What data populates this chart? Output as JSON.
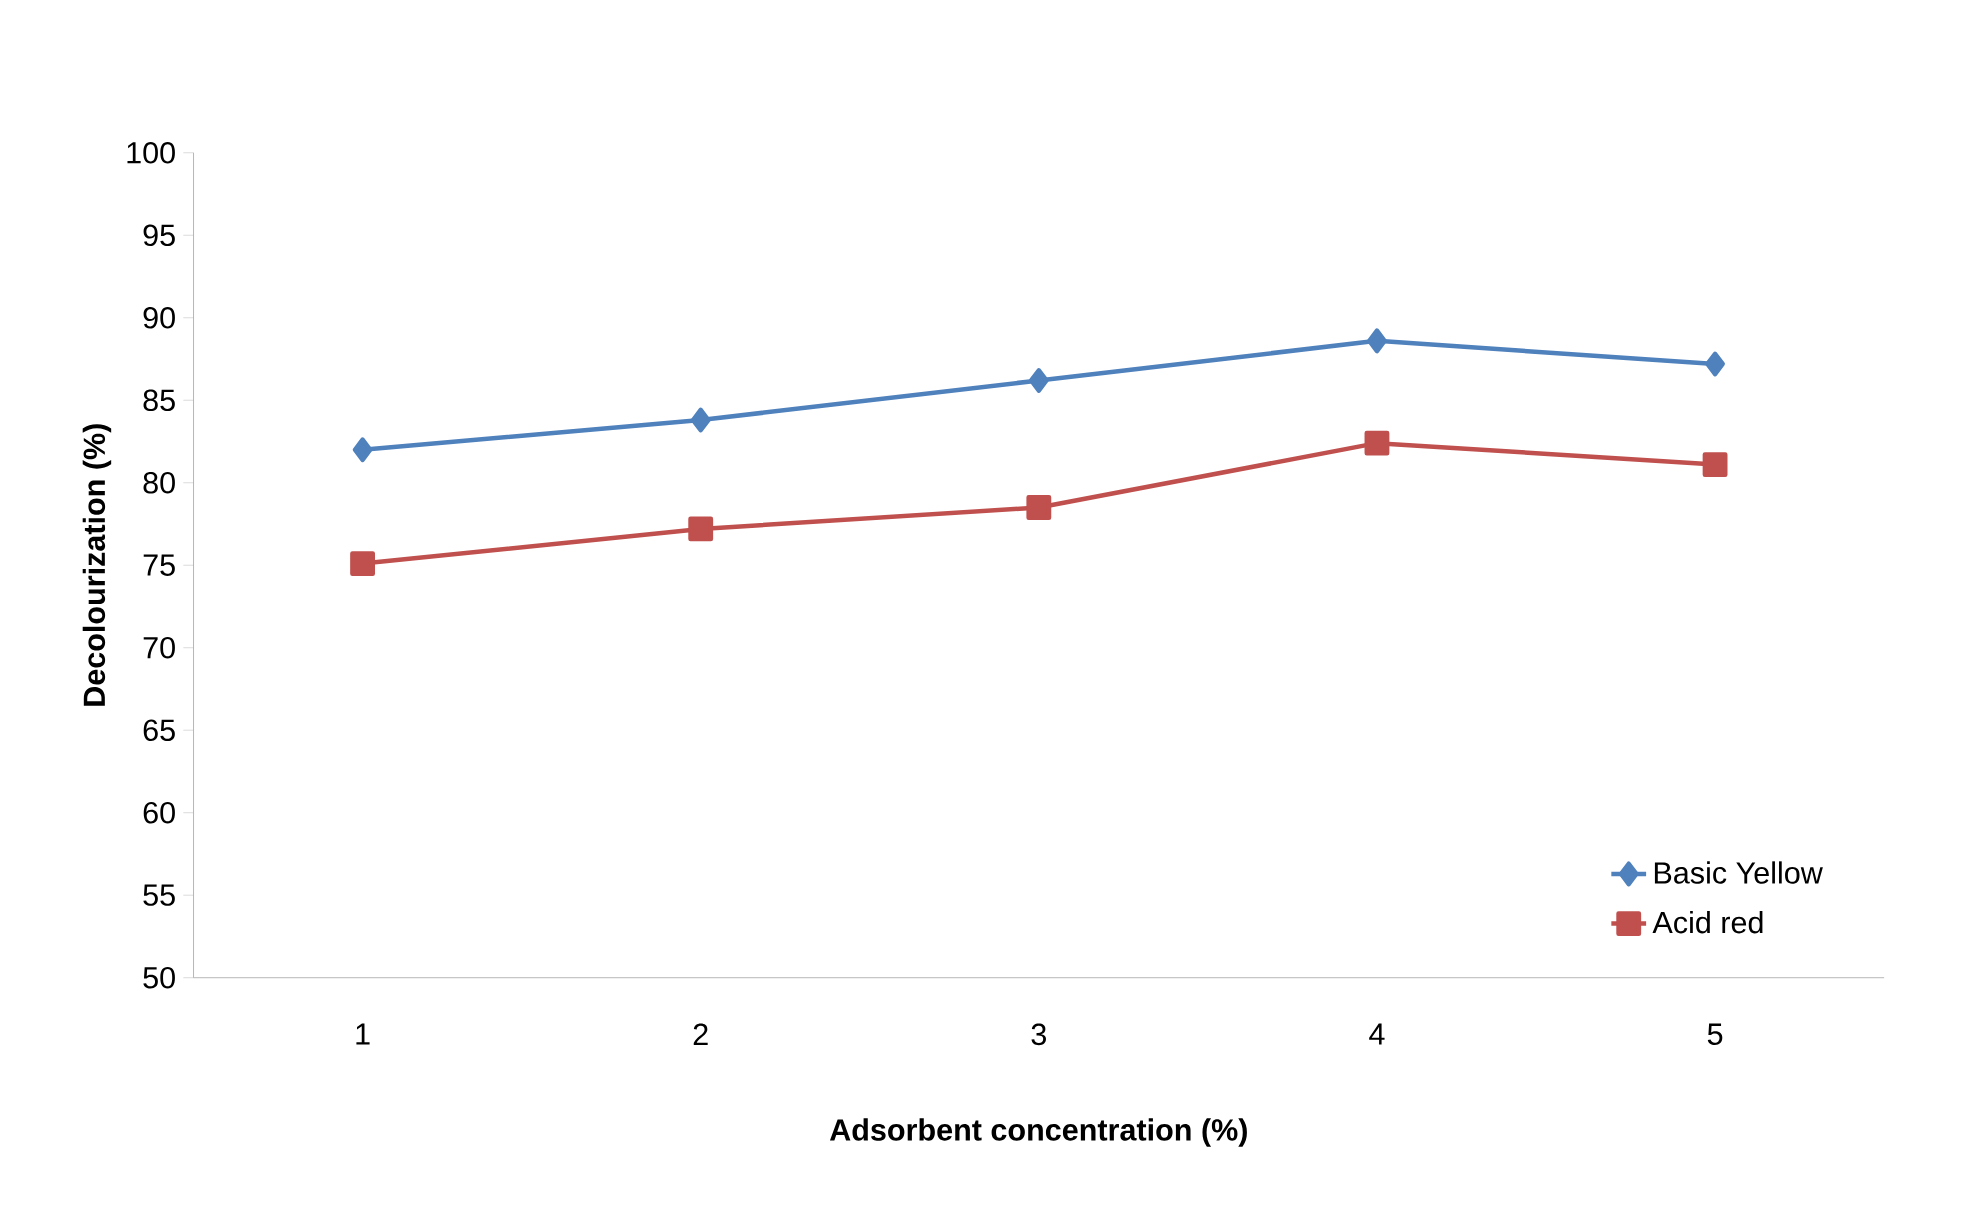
{
  "chart_data": {
    "type": "line",
    "xlabel": "Adsorbent concentration (%)",
    "ylabel": "Decolourization (%)",
    "categories": [
      "1",
      "2",
      "3",
      "4",
      "5"
    ],
    "series": [
      {
        "name": "Basic Yellow",
        "color": "#4f81bd",
        "marker": "diamond",
        "values": [
          82.0,
          83.8,
          86.2,
          88.6,
          87.2
        ]
      },
      {
        "name": "Acid red",
        "color": "#c0504d",
        "marker": "square",
        "values": [
          75.1,
          77.2,
          78.5,
          82.4,
          81.1
        ]
      }
    ],
    "ylim": [
      50,
      100
    ],
    "yticks": [
      50,
      55,
      60,
      65,
      70,
      75,
      80,
      85,
      90,
      95,
      100
    ],
    "grid": false,
    "legend": "bottom right"
  }
}
